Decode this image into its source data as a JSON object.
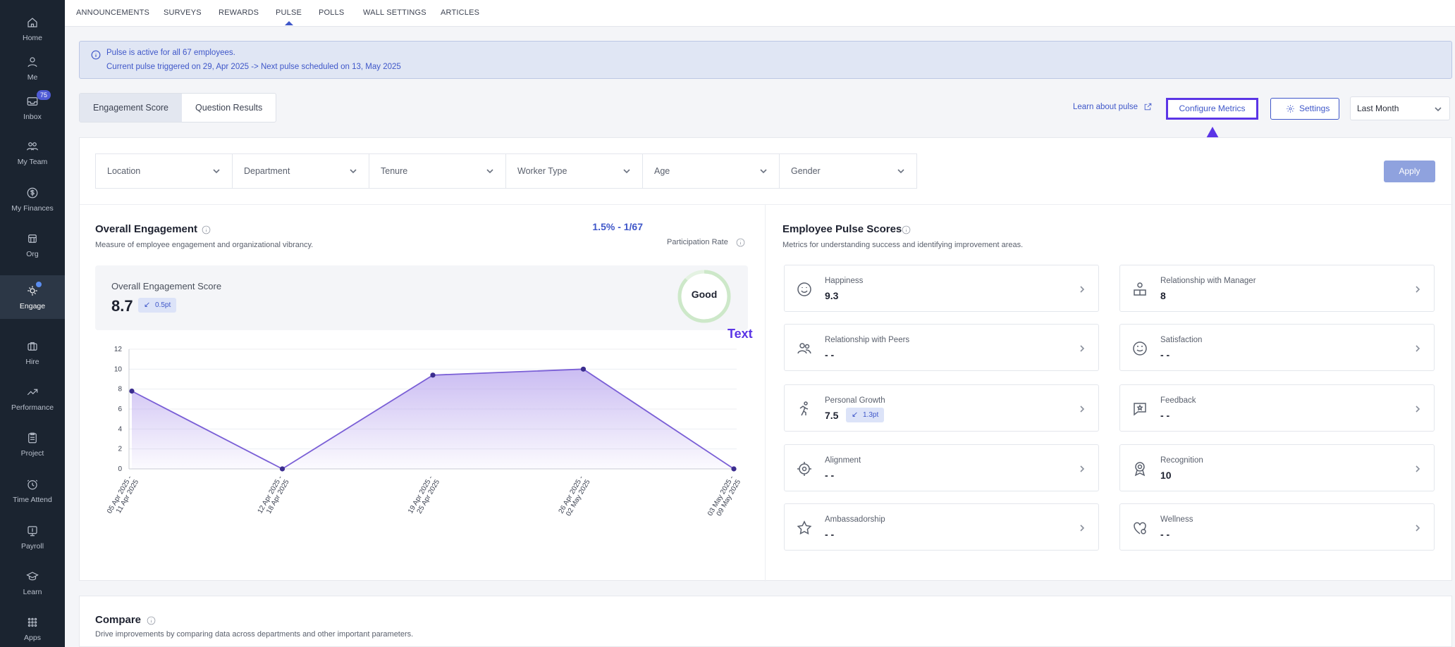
{
  "sidebar": {
    "items": [
      {
        "label": "Home",
        "icon": "home-icon"
      },
      {
        "label": "Me",
        "icon": "user-icon"
      },
      {
        "label": "Inbox",
        "icon": "inbox-icon",
        "badge": "75"
      },
      {
        "label": "My Team",
        "icon": "team-icon"
      },
      {
        "label": "My Finances",
        "icon": "finance-icon"
      },
      {
        "label": "Org",
        "icon": "org-icon"
      },
      {
        "label": "Engage",
        "icon": "engage-icon",
        "active": true
      },
      {
        "label": "Hire",
        "icon": "briefcase-icon"
      },
      {
        "label": "Performance",
        "icon": "trend-icon"
      },
      {
        "label": "Project",
        "icon": "clipboard-icon"
      },
      {
        "label": "Time Attend",
        "icon": "clock-icon"
      },
      {
        "label": "Payroll",
        "icon": "payroll-icon"
      },
      {
        "label": "Learn",
        "icon": "graduation-icon"
      },
      {
        "label": "Apps",
        "icon": "grid-icon"
      }
    ]
  },
  "top_tabs": [
    "ANNOUNCEMENTS",
    "SURVEYS",
    "REWARDS",
    "PULSE",
    "POLLS",
    "WALL SETTINGS",
    "ARTICLES"
  ],
  "active_top_tab": "PULSE",
  "banner": {
    "line1": "Pulse is active for all 67 employees.",
    "line2": "Current pulse triggered on 29, Apr 2025 -> Next pulse scheduled on 13, May 2025"
  },
  "view_tabs": [
    "Engagement Score",
    "Question Results"
  ],
  "toolbar": {
    "learn_label": "Learn about pulse",
    "configure_label": "Configure Metrics",
    "settings_label": "Settings",
    "period_value": "Last Month"
  },
  "filters": [
    "Location",
    "Department",
    "Tenure",
    "Worker Type",
    "Age",
    "Gender"
  ],
  "apply_label": "Apply",
  "overall": {
    "title": "Overall Engagement",
    "subtitle": "Measure of employee engagement and organizational vibrancy.",
    "participation_value": "1.5% - 1/67",
    "participation_label": "Participation Rate",
    "score_label": "Overall Engagement Score",
    "score_value": "8.7",
    "score_delta": "0.5pt",
    "rating": "Good",
    "rating_fraction": 0.87,
    "annotation": "Text"
  },
  "chart_data": {
    "type": "area",
    "x": [
      "05 Apr 2025 - 11 Apr 2025",
      "12 Apr 2025 - 18 Apr 2025",
      "19 Apr 2025 - 25 Apr 2025",
      "26 Apr 2025 - 02 May 2025",
      "03 May 2025 - 09 May 2025"
    ],
    "x_lines": [
      [
        "05 Apr 2025 -",
        "11 Apr 2025"
      ],
      [
        "12 Apr 2025 -",
        "18 Apr 2025"
      ],
      [
        "19 Apr 2025 -",
        "25 Apr 2025"
      ],
      [
        "26 Apr 2025 -",
        "02 May 2025"
      ],
      [
        "03 May 2025 -",
        "09 May 2025"
      ]
    ],
    "values": [
      7.8,
      0,
      9.4,
      10,
      0
    ],
    "yticks": [
      0,
      2,
      4,
      6,
      8,
      10,
      12
    ],
    "ylim": [
      0,
      12
    ],
    "line_color": "#7a5fd6",
    "grid": true
  },
  "pulse": {
    "title": "Employee Pulse Scores",
    "subtitle": "Metrics for understanding success and identifying improvement areas.",
    "metrics": [
      {
        "name": "Happiness",
        "value": "9.3",
        "icon": "smile-icon"
      },
      {
        "name": "Relationship with Manager",
        "value": "8",
        "icon": "handshake-icon"
      },
      {
        "name": "Relationship with Peers",
        "value": "- -",
        "icon": "peers-icon"
      },
      {
        "name": "Satisfaction",
        "value": "- -",
        "icon": "satisfaction-icon"
      },
      {
        "name": "Personal Growth",
        "value": "7.5",
        "delta": "1.3pt",
        "icon": "running-icon"
      },
      {
        "name": "Feedback",
        "value": "- -",
        "icon": "feedback-icon"
      },
      {
        "name": "Alignment",
        "value": "- -",
        "icon": "target-icon"
      },
      {
        "name": "Recognition",
        "value": "10",
        "icon": "award-icon"
      },
      {
        "name": "Ambassadorship",
        "value": "- -",
        "icon": "star-icon"
      },
      {
        "name": "Wellness",
        "value": "- -",
        "icon": "heart-icon"
      }
    ]
  },
  "compare": {
    "title": "Compare",
    "subtitle": "Drive improvements by comparing data across departments and other important parameters."
  },
  "colors": {
    "accent": "#3f57c9",
    "highlight": "#5b35e6",
    "sidebar": "#1b2430"
  }
}
